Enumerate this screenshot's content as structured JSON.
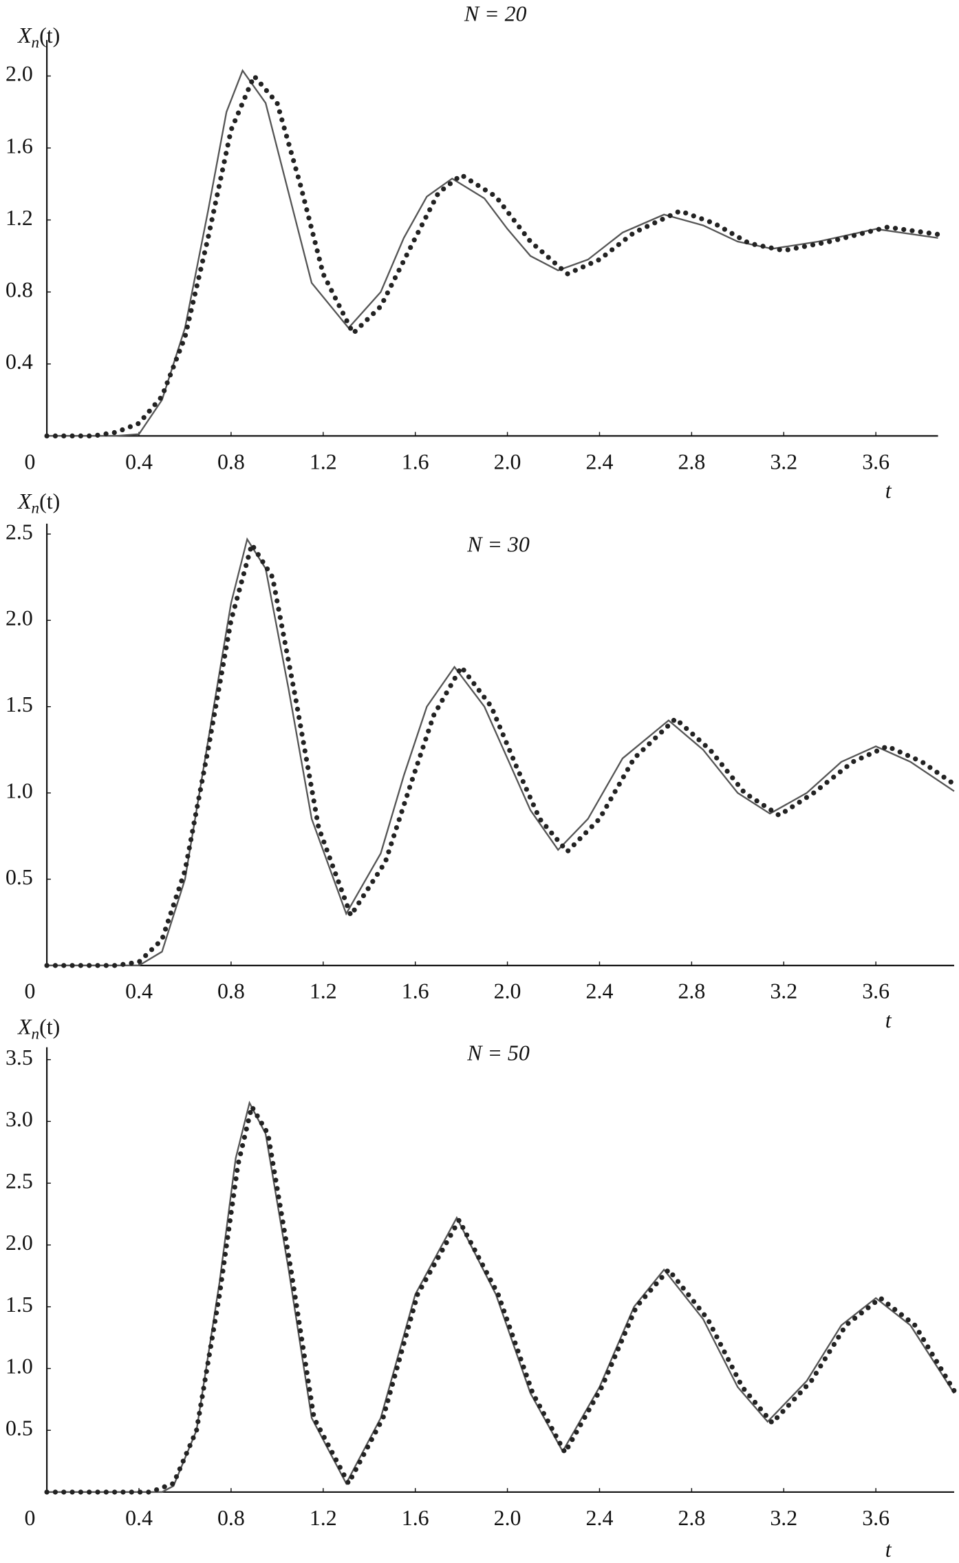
{
  "chart_data": [
    {
      "type": "line",
      "title": "N = 20",
      "ylabel": [
        "X",
        "n",
        "(t)"
      ],
      "xlabel": "t",
      "xlim": [
        0,
        3.87
      ],
      "ylim": [
        0,
        2.2
      ],
      "xticks": [
        0,
        0.4,
        0.8,
        1.2,
        1.6,
        {
          "value": 2,
          "label": "2.0"
        },
        2.4,
        2.8,
        3.2,
        3.6
      ],
      "yticks": [
        0.4,
        0.8,
        1.2,
        1.6,
        {
          "value": 2,
          "label": "2.0"
        }
      ],
      "series": [
        {
          "color": "#555555",
          "style": "solid",
          "x": [
            0,
            0.3,
            0.4,
            0.5,
            0.6,
            0.7,
            0.78,
            0.85,
            0.95,
            1.05,
            1.15,
            1.31,
            1.45,
            1.55,
            1.65,
            1.76,
            1.9,
            2.0,
            2.1,
            2.22,
            2.35,
            2.5,
            2.68,
            2.85,
            3.0,
            3.15,
            3.35,
            3.6,
            3.87
          ],
          "values": [
            0,
            0,
            0.01,
            0.2,
            0.6,
            1.25,
            1.8,
            2.03,
            1.85,
            1.35,
            0.85,
            0.6,
            0.8,
            1.1,
            1.33,
            1.43,
            1.32,
            1.15,
            1.0,
            0.92,
            0.98,
            1.13,
            1.23,
            1.17,
            1.08,
            1.04,
            1.08,
            1.15,
            1.1
          ]
        },
        {
          "color": "#222222",
          "style": "dotted",
          "x": [
            0,
            0.2,
            0.3,
            0.4,
            0.5,
            0.6,
            0.7,
            0.8,
            0.9,
            1.0,
            1.1,
            1.2,
            1.33,
            1.45,
            1.6,
            1.7,
            1.8,
            1.95,
            2.1,
            2.26,
            2.4,
            2.55,
            2.75,
            2.9,
            3.05,
            3.2,
            3.4,
            3.65,
            3.87
          ],
          "values": [
            0,
            0,
            0.02,
            0.07,
            0.22,
            0.55,
            1.1,
            1.7,
            2.0,
            1.85,
            1.4,
            0.9,
            0.57,
            0.72,
            1.1,
            1.35,
            1.45,
            1.33,
            1.08,
            0.9,
            0.98,
            1.13,
            1.25,
            1.18,
            1.07,
            1.03,
            1.08,
            1.16,
            1.12
          ]
        }
      ]
    },
    {
      "type": "line",
      "title": "N = 30",
      "ylabel": [
        "X",
        "n",
        "(t)"
      ],
      "xlabel": "t",
      "xlim": [
        0,
        3.94
      ],
      "ylim": [
        0,
        2.56
      ],
      "xticks": [
        0,
        0.4,
        0.8,
        1.2,
        1.6,
        {
          "value": 2,
          "label": "2.0"
        },
        2.4,
        2.8,
        3.2,
        3.6
      ],
      "yticks": [
        0.5,
        {
          "value": 1,
          "label": "1.0"
        },
        1.5,
        {
          "value": 2,
          "label": "2.0"
        },
        2.5
      ],
      "series": [
        {
          "color": "#555555",
          "style": "solid",
          "x": [
            0,
            0.4,
            0.5,
            0.6,
            0.7,
            0.8,
            0.87,
            0.95,
            1.05,
            1.15,
            1.3,
            1.45,
            1.55,
            1.65,
            1.77,
            1.9,
            2.0,
            2.1,
            2.22,
            2.35,
            2.5,
            2.7,
            2.85,
            3.0,
            3.14,
            3.3,
            3.45,
            3.6,
            3.75,
            3.94
          ],
          "values": [
            0,
            0,
            0.08,
            0.5,
            1.3,
            2.1,
            2.47,
            2.3,
            1.6,
            0.85,
            0.3,
            0.65,
            1.1,
            1.5,
            1.73,
            1.5,
            1.2,
            0.9,
            0.67,
            0.85,
            1.2,
            1.42,
            1.25,
            1.0,
            0.88,
            1.0,
            1.18,
            1.27,
            1.18,
            1.01
          ]
        },
        {
          "color": "#222222",
          "style": "dotted",
          "x": [
            0,
            0.3,
            0.4,
            0.5,
            0.6,
            0.7,
            0.8,
            0.89,
            0.98,
            1.08,
            1.18,
            1.32,
            1.47,
            1.58,
            1.68,
            1.8,
            1.93,
            2.04,
            2.14,
            2.26,
            2.4,
            2.55,
            2.73,
            2.88,
            3.03,
            3.18,
            3.33,
            3.5,
            3.65,
            3.8,
            3.94
          ],
          "values": [
            0,
            0,
            0.02,
            0.15,
            0.55,
            1.25,
            2.0,
            2.44,
            2.25,
            1.55,
            0.8,
            0.29,
            0.6,
            1.05,
            1.45,
            1.73,
            1.5,
            1.15,
            0.85,
            0.66,
            0.85,
            1.2,
            1.43,
            1.25,
            1.0,
            0.87,
            1.0,
            1.18,
            1.27,
            1.18,
            1.05
          ]
        }
      ]
    },
    {
      "type": "line",
      "title": "N = 50",
      "ylabel": [
        "X",
        "n",
        "(t)"
      ],
      "xlabel": "t",
      "xlim": [
        0,
        3.94
      ],
      "ylim": [
        0,
        3.6
      ],
      "xticks": [
        0,
        0.4,
        0.8,
        1.2,
        1.6,
        {
          "value": 2,
          "label": "2.0"
        },
        2.4,
        2.8,
        3.2,
        3.6
      ],
      "yticks": [
        0.5,
        {
          "value": 1,
          "label": "1.0"
        },
        1.5,
        {
          "value": 2,
          "label": "2.0"
        },
        2.5,
        {
          "value": 3,
          "label": "3.0"
        },
        3.5
      ],
      "series": [
        {
          "color": "#555555",
          "style": "solid",
          "x": [
            0,
            0.5,
            0.55,
            0.65,
            0.75,
            0.82,
            0.88,
            0.95,
            1.05,
            1.15,
            1.3,
            1.45,
            1.6,
            1.78,
            1.95,
            2.1,
            2.24,
            2.4,
            2.55,
            2.68,
            2.85,
            3.0,
            3.13,
            3.3,
            3.45,
            3.6,
            3.75,
            3.94
          ],
          "values": [
            0,
            0,
            0.05,
            0.5,
            1.7,
            2.7,
            3.15,
            2.9,
            1.8,
            0.6,
            0.07,
            0.6,
            1.6,
            2.22,
            1.6,
            0.8,
            0.33,
            0.85,
            1.5,
            1.8,
            1.4,
            0.85,
            0.57,
            0.9,
            1.35,
            1.57,
            1.35,
            0.8
          ]
        },
        {
          "color": "#222222",
          "style": "dotted",
          "x": [
            0,
            0.45,
            0.55,
            0.65,
            0.75,
            0.83,
            0.89,
            0.96,
            1.06,
            1.16,
            1.31,
            1.46,
            1.61,
            1.79,
            1.96,
            2.11,
            2.25,
            2.41,
            2.56,
            2.7,
            2.87,
            3.02,
            3.15,
            3.32,
            3.47,
            3.62,
            3.77,
            3.94
          ],
          "values": [
            0,
            0,
            0.07,
            0.5,
            1.6,
            2.65,
            3.12,
            2.9,
            1.8,
            0.6,
            0.07,
            0.6,
            1.6,
            2.2,
            1.6,
            0.8,
            0.32,
            0.85,
            1.5,
            1.8,
            1.4,
            0.85,
            0.56,
            0.9,
            1.35,
            1.57,
            1.35,
            0.82
          ]
        }
      ]
    }
  ]
}
